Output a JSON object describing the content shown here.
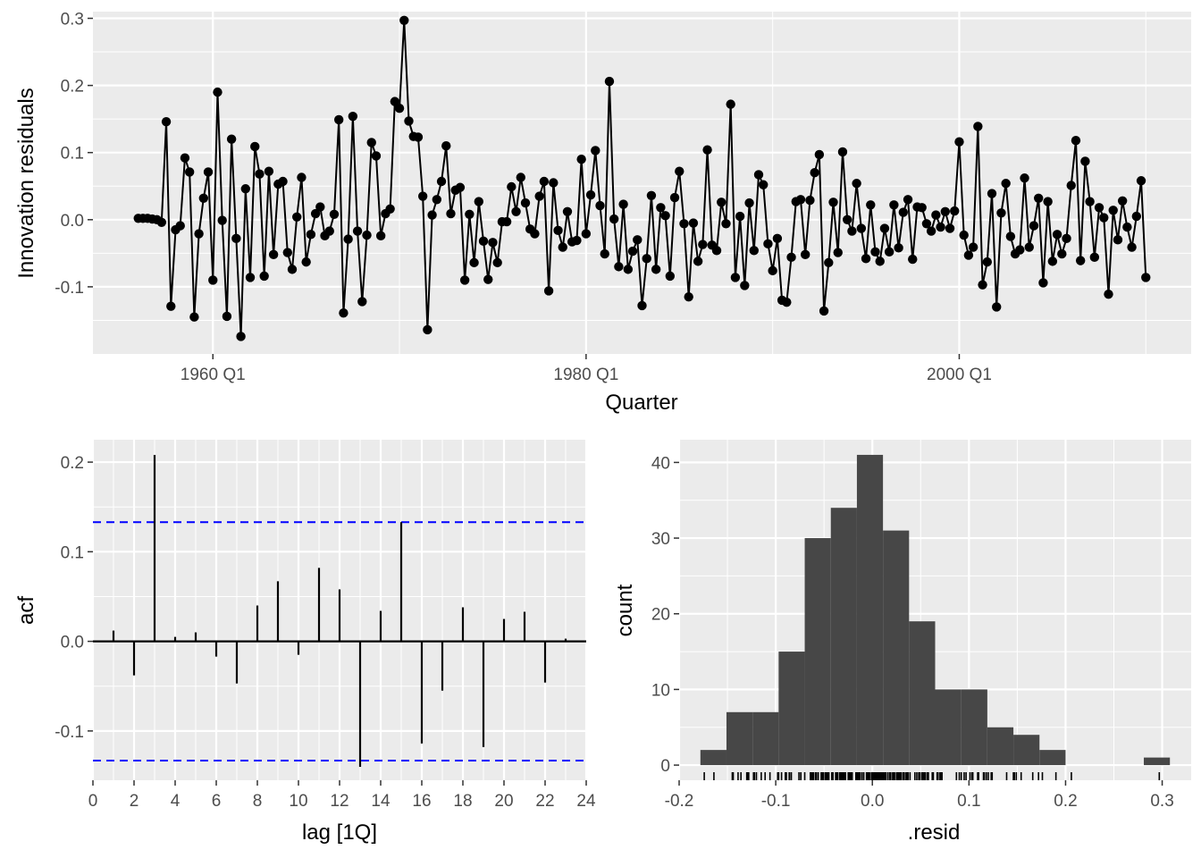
{
  "colors": {
    "panel": "#ebebeb",
    "grid": "#ffffff",
    "ink": "#000000",
    "bar": "#474747",
    "ci": "#0000ff",
    "tick_text": "#4d4d4d"
  },
  "chart_data": [
    {
      "type": "line",
      "title": "",
      "xlabel": "Quarter",
      "ylabel": "Innovation residuals",
      "x_start": "1956 Q1",
      "x_frequency": "quarterly",
      "x_ticks": [
        "1960 Q1",
        "1980 Q1",
        "2000 Q1"
      ],
      "y_ticks": [
        "-0.1",
        "0.0",
        "0.1",
        "0.2",
        "0.3"
      ],
      "ylim": [
        -0.2,
        0.31
      ],
      "markers": true,
      "grid": true,
      "values": [
        0.002,
        0.002,
        0.002,
        0.001,
        0.0,
        -0.004,
        0.146,
        -0.129,
        -0.015,
        -0.009,
        0.092,
        0.071,
        -0.145,
        -0.021,
        0.032,
        0.071,
        -0.09,
        0.19,
        -0.001,
        -0.144,
        0.12,
        -0.028,
        -0.174,
        0.046,
        -0.086,
        0.109,
        0.068,
        -0.084,
        0.072,
        -0.052,
        0.053,
        0.057,
        -0.049,
        -0.074,
        0.004,
        0.063,
        -0.063,
        -0.022,
        0.009,
        0.019,
        -0.024,
        -0.017,
        0.008,
        0.149,
        -0.139,
        -0.029,
        0.154,
        -0.017,
        -0.122,
        -0.023,
        0.115,
        0.095,
        -0.024,
        0.009,
        0.016,
        0.176,
        0.166,
        0.297,
        0.147,
        0.124,
        0.123,
        0.035,
        -0.164,
        0.007,
        0.03,
        0.057,
        0.11,
        0.009,
        0.044,
        0.048,
        -0.09,
        0.008,
        -0.064,
        0.027,
        -0.032,
        -0.089,
        -0.034,
        -0.064,
        -0.003,
        -0.003,
        0.049,
        0.012,
        0.063,
        0.025,
        -0.014,
        -0.021,
        0.035,
        0.057,
        -0.106,
        0.055,
        -0.016,
        -0.041,
        0.012,
        -0.033,
        -0.031,
        0.09,
        -0.021,
        0.037,
        0.103,
        0.021,
        -0.051,
        0.206,
        0.001,
        -0.07,
        0.023,
        -0.074,
        -0.047,
        -0.03,
        -0.128,
        -0.058,
        0.036,
        -0.074,
        0.018,
        0.006,
        -0.084,
        0.033,
        0.072,
        -0.006,
        -0.115,
        -0.005,
        -0.062,
        -0.037,
        0.104,
        -0.038,
        -0.046,
        0.026,
        -0.006,
        0.172,
        -0.086,
        0.005,
        -0.098,
        0.025,
        -0.046,
        0.067,
        0.052,
        -0.036,
        -0.076,
        -0.028,
        -0.12,
        -0.123,
        -0.056,
        0.027,
        0.03,
        -0.052,
        0.029,
        0.07,
        0.097,
        -0.136,
        -0.064,
        0.026,
        -0.049,
        0.101,
        0.0,
        -0.017,
        0.054,
        -0.013,
        -0.058,
        0.022,
        -0.048,
        -0.062,
        -0.013,
        -0.048,
        0.022,
        -0.042,
        0.011,
        0.03,
        -0.059,
        0.019,
        0.018,
        -0.006,
        -0.017,
        0.007,
        -0.011,
        0.012,
        -0.013,
        0.013,
        0.116,
        -0.023,
        -0.053,
        -0.041,
        0.139,
        -0.097,
        -0.063,
        0.039,
        -0.13,
        0.01,
        0.054,
        -0.025,
        -0.051,
        -0.045,
        0.062,
        -0.041,
        -0.009,
        0.032,
        -0.094,
        0.027,
        -0.062,
        -0.022,
        -0.051,
        -0.028,
        0.051,
        0.118,
        -0.061,
        0.087,
        0.027,
        -0.056,
        0.018,
        0.003,
        -0.111,
        0.014,
        -0.03,
        0.028,
        -0.011,
        -0.041,
        0.005,
        0.058,
        -0.086
      ]
    },
    {
      "type": "bar",
      "title": "",
      "xlabel": "lag [1Q]",
      "ylabel": "acf",
      "x_ticks": [
        "0",
        "2",
        "4",
        "6",
        "8",
        "10",
        "12",
        "14",
        "16",
        "18",
        "20",
        "22",
        "24"
      ],
      "y_ticks": [
        "-0.1",
        "0.0",
        "0.1",
        "0.2"
      ],
      "xlim": [
        0,
        24
      ],
      "ylim": [
        -0.155,
        0.225
      ],
      "categories": [
        1,
        2,
        3,
        4,
        5,
        6,
        7,
        8,
        9,
        10,
        11,
        12,
        13,
        14,
        15,
        16,
        17,
        18,
        19,
        20,
        21,
        22,
        23
      ],
      "values": [
        0.012,
        -0.038,
        0.208,
        0.005,
        0.01,
        -0.017,
        -0.047,
        0.04,
        0.067,
        -0.015,
        0.082,
        0.058,
        -0.14,
        0.034,
        0.133,
        -0.114,
        -0.055,
        0.038,
        -0.118,
        0.025,
        0.033,
        -0.046,
        0.003
      ],
      "ci": [
        -0.133,
        0.133
      ]
    },
    {
      "type": "bar",
      "title": "",
      "xlabel": ".resid",
      "ylabel": "count",
      "x_ticks": [
        "-0.2",
        "-0.1",
        "0.0",
        "0.1",
        "0.2",
        "0.3"
      ],
      "y_ticks": [
        "0",
        "10",
        "20",
        "30",
        "40"
      ],
      "xlim": [
        -0.2,
        0.33
      ],
      "ylim": [
        -2,
        43
      ],
      "bin_edges": [
        -0.178,
        -0.151,
        -0.124,
        -0.097,
        -0.07,
        -0.043,
        -0.016,
        0.011,
        0.038,
        0.065,
        0.092,
        0.119,
        0.146,
        0.173,
        0.2,
        0.227,
        0.254,
        0.281,
        0.308
      ],
      "values": [
        2,
        7,
        7,
        15,
        30,
        34,
        41,
        31,
        19,
        10,
        10,
        5,
        4,
        2,
        0,
        0,
        0,
        1
      ],
      "rug": true
    }
  ]
}
